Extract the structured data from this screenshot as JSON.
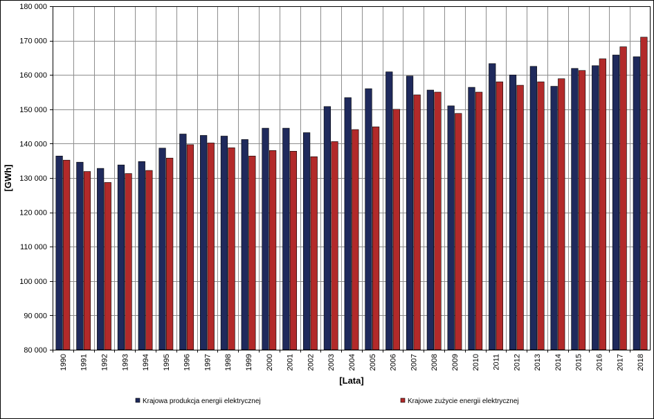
{
  "chart_data": {
    "type": "bar",
    "title": "",
    "xlabel": "[Lata]",
    "ylabel": "[GWh]",
    "ylim": [
      80000,
      180000
    ],
    "yticks": [
      "80 000",
      "90 000",
      "100 000",
      "110 000",
      "120 000",
      "130 000",
      "140 000",
      "150 000",
      "160 000",
      "170 000",
      "180 000"
    ],
    "grid": true,
    "legend_position": "bottom",
    "categories": [
      "1990",
      "1991",
      "1992",
      "1993",
      "1994",
      "1995",
      "1996",
      "1997",
      "1998",
      "1999",
      "2000",
      "2001",
      "2002",
      "2003",
      "2004",
      "2005",
      "2006",
      "2007",
      "2008",
      "2009",
      "2010",
      "2011",
      "2012",
      "2013",
      "2014",
      "2015",
      "2016",
      "2017",
      "2018"
    ],
    "series": [
      {
        "name": "Krajowa produkcja energii elektrycznej",
        "color": "#1f2a5c",
        "values": [
          136400,
          134600,
          132800,
          133800,
          134800,
          138700,
          142800,
          142400,
          142200,
          141200,
          144500,
          144500,
          143200,
          150800,
          153400,
          156000,
          160900,
          159700,
          155600,
          151000,
          156400,
          163300,
          160000,
          162500,
          156700,
          161900,
          162700,
          165800,
          165300
        ]
      },
      {
        "name": "Krajowe zużycie energii elektrycznej",
        "color": "#b22a2a",
        "values": [
          135200,
          131900,
          128700,
          131300,
          132200,
          135800,
          139700,
          140200,
          138800,
          136400,
          138000,
          137800,
          136200,
          140600,
          144100,
          144900,
          150000,
          154200,
          155000,
          148800,
          155000,
          158000,
          157000,
          158000,
          158900,
          161300,
          164700,
          168200,
          171000
        ]
      }
    ]
  }
}
